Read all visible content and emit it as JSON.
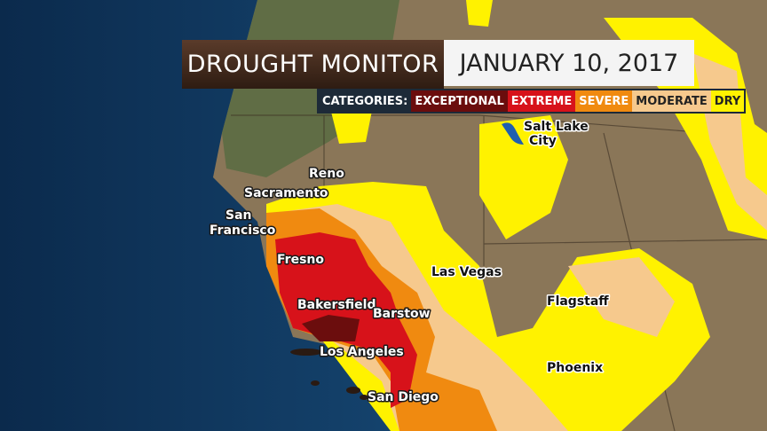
{
  "header": {
    "title": "DROUGHT MONITOR",
    "date": "JANUARY 10, 2017"
  },
  "legend": {
    "label": "CATEGORIES:",
    "categories": [
      {
        "name": "EXCEPTIONAL",
        "color": "#6b0d0d",
        "text_color": "#ffffff"
      },
      {
        "name": "EXTREME",
        "color": "#d7121a",
        "text_color": "#ffffff"
      },
      {
        "name": "SEVERE",
        "color": "#f08a10",
        "text_color": "#ffffff"
      },
      {
        "name": "MODERATE",
        "color": "#f6c98d",
        "text_color": "#222222"
      },
      {
        "name": "DRY",
        "color": "#fff200",
        "text_color": "#222222"
      }
    ]
  },
  "cities": [
    "Reno",
    "Sacramento",
    "San",
    "Francisco",
    "Fresno",
    "Bakersfield",
    "Barstow",
    "Los Angeles",
    "San Diego",
    "Las Vegas",
    "Salt Lake",
    "City",
    "Flagstaff",
    "Phoenix"
  ]
}
